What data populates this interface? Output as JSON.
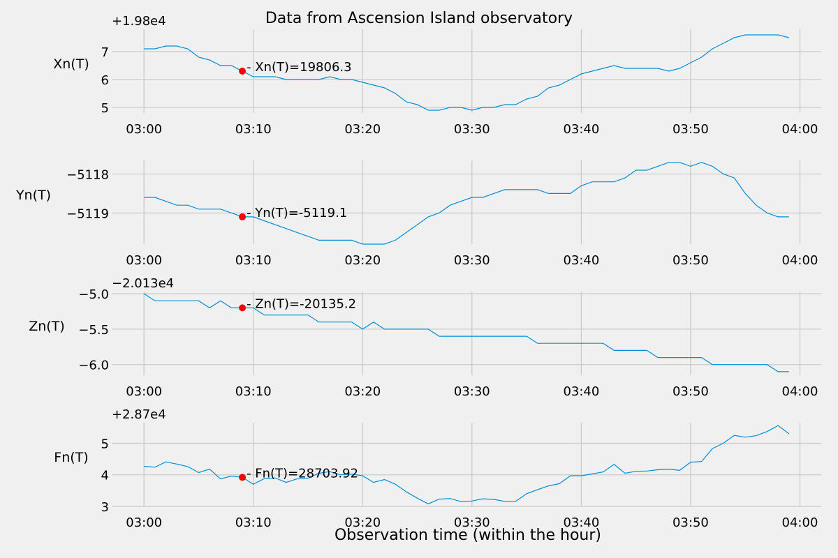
{
  "title": "Data from  Ascension Island observatory",
  "xlabel": "Observation time (within the hour)",
  "chart_data": [
    {
      "type": "line",
      "ylabel": "Xn(T)",
      "offset_text": "+1.98e4",
      "offset": 19800,
      "ylim": [
        4.8,
        7.8
      ],
      "yticks": [
        5,
        6,
        7
      ],
      "ytick_labels": [
        "5",
        "6",
        "7"
      ],
      "xticks": [
        0,
        10,
        20,
        30,
        40,
        50,
        60
      ],
      "xtick_labels": [
        "03:00",
        "03:10",
        "03:20",
        "03:30",
        "03:40",
        "03:50",
        "04:00"
      ],
      "x_minutes": [
        0,
        1,
        2,
        3,
        4,
        5,
        6,
        7,
        8,
        9,
        10,
        11,
        12,
        13,
        14,
        15,
        16,
        17,
        18,
        19,
        20,
        21,
        22,
        23,
        24,
        25,
        26,
        27,
        28,
        29,
        30,
        31,
        32,
        33,
        34,
        35,
        36,
        37,
        38,
        39,
        40,
        41,
        42,
        43,
        44,
        45,
        46,
        47,
        48,
        49,
        50,
        51,
        52,
        53,
        54,
        55,
        56,
        57,
        58,
        59
      ],
      "values": [
        7.1,
        7.1,
        7.2,
        7.2,
        7.1,
        6.8,
        6.7,
        6.5,
        6.5,
        6.3,
        6.1,
        6.1,
        6.1,
        6.0,
        6.0,
        6.0,
        6.0,
        6.1,
        6.0,
        6.0,
        5.9,
        5.8,
        5.7,
        5.5,
        5.2,
        5.1,
        4.9,
        4.9,
        5.0,
        5.0,
        4.9,
        5.0,
        5.0,
        5.1,
        5.1,
        5.3,
        5.4,
        5.7,
        5.8,
        6.0,
        6.2,
        6.3,
        6.4,
        6.5,
        6.4,
        6.4,
        6.4,
        6.4,
        6.3,
        6.4,
        6.6,
        6.8,
        7.1,
        7.3,
        7.5,
        7.6,
        7.6,
        7.6,
        7.6,
        7.5
      ],
      "marker": {
        "x_minute": 9,
        "value": 6.3,
        "label": "- Xn(T)=19806.3"
      }
    },
    {
      "type": "line",
      "ylabel": "Yn(T)",
      "offset_text": "",
      "offset": 0,
      "ylim": [
        -5119.8,
        -5117.65
      ],
      "yticks": [
        -5119,
        -5118
      ],
      "ytick_labels": [
        "−5119",
        "−5118"
      ],
      "xticks": [
        0,
        10,
        20,
        30,
        40,
        50,
        60
      ],
      "xtick_labels": [
        "03:00",
        "03:10",
        "03:20",
        "03:30",
        "03:40",
        "03:50",
        "04:00"
      ],
      "x_minutes": [
        0,
        1,
        2,
        3,
        4,
        5,
        6,
        7,
        8,
        9,
        10,
        11,
        12,
        13,
        14,
        15,
        16,
        17,
        18,
        19,
        20,
        21,
        22,
        23,
        24,
        25,
        26,
        27,
        28,
        29,
        30,
        31,
        32,
        33,
        34,
        35,
        36,
        37,
        38,
        39,
        40,
        41,
        42,
        43,
        44,
        45,
        46,
        47,
        48,
        49,
        50,
        51,
        52,
        53,
        54,
        55,
        56,
        57,
        58,
        59
      ],
      "values": [
        -5118.6,
        -5118.6,
        -5118.7,
        -5118.8,
        -5118.8,
        -5118.9,
        -5118.9,
        -5118.9,
        -5119.0,
        -5119.1,
        -5119.1,
        -5119.2,
        -5119.3,
        -5119.4,
        -5119.5,
        -5119.6,
        -5119.7,
        -5119.7,
        -5119.7,
        -5119.7,
        -5119.8,
        -5119.8,
        -5119.8,
        -5119.7,
        -5119.5,
        -5119.3,
        -5119.1,
        -5119.0,
        -5118.8,
        -5118.7,
        -5118.6,
        -5118.6,
        -5118.5,
        -5118.4,
        -5118.4,
        -5118.4,
        -5118.4,
        -5118.5,
        -5118.5,
        -5118.5,
        -5118.3,
        -5118.2,
        -5118.2,
        -5118.2,
        -5118.1,
        -5117.9,
        -5117.9,
        -5117.8,
        -5117.7,
        -5117.7,
        -5117.8,
        -5117.7,
        -5117.8,
        -5118.0,
        -5118.1,
        -5118.5,
        -5118.8,
        -5119.0,
        -5119.1,
        -5119.1
      ],
      "marker": {
        "x_minute": 9,
        "value": -5119.1,
        "label": "- Yn(T)=-5119.1"
      }
    },
    {
      "type": "line",
      "ylabel": "Zn(T)",
      "offset_text": "−2.013e4",
      "offset": -20130,
      "ylim": [
        -6.15,
        -4.97
      ],
      "yticks": [
        -6.0,
        -5.5,
        -5.0
      ],
      "ytick_labels": [
        "−6.0",
        "−5.5",
        "−5.0"
      ],
      "xticks": [
        0,
        10,
        20,
        30,
        40,
        50,
        60
      ],
      "xtick_labels": [
        "03:00",
        "03:10",
        "03:20",
        "03:30",
        "03:40",
        "03:50",
        "04:00"
      ],
      "x_minutes": [
        0,
        1,
        2,
        3,
        4,
        5,
        6,
        7,
        8,
        9,
        10,
        11,
        12,
        13,
        14,
        15,
        16,
        17,
        18,
        19,
        20,
        21,
        22,
        23,
        24,
        25,
        26,
        27,
        28,
        29,
        30,
        31,
        32,
        33,
        34,
        35,
        36,
        37,
        38,
        39,
        40,
        41,
        42,
        43,
        44,
        45,
        46,
        47,
        48,
        49,
        50,
        51,
        52,
        53,
        54,
        55,
        56,
        57,
        58,
        59
      ],
      "values": [
        -5.0,
        -5.1,
        -5.1,
        -5.1,
        -5.1,
        -5.1,
        -5.2,
        -5.1,
        -5.2,
        -5.2,
        -5.2,
        -5.3,
        -5.3,
        -5.3,
        -5.3,
        -5.3,
        -5.4,
        -5.4,
        -5.4,
        -5.4,
        -5.5,
        -5.4,
        -5.5,
        -5.5,
        -5.5,
        -5.5,
        -5.5,
        -5.6,
        -5.6,
        -5.6,
        -5.6,
        -5.6,
        -5.6,
        -5.6,
        -5.6,
        -5.6,
        -5.7,
        -5.7,
        -5.7,
        -5.7,
        -5.7,
        -5.7,
        -5.7,
        -5.8,
        -5.8,
        -5.8,
        -5.8,
        -5.9,
        -5.9,
        -5.9,
        -5.9,
        -5.9,
        -6.0,
        -6.0,
        -6.0,
        -6.0,
        -6.0,
        -6.0,
        -6.1,
        -6.1
      ],
      "marker": {
        "x_minute": 9,
        "value": -5.2,
        "label": "- Zn(T)=-20135.2"
      }
    },
    {
      "type": "line",
      "ylabel": "Fn(T)",
      "offset_text": "+2.87e4",
      "offset": 28700,
      "ylim": [
        3.0,
        5.65
      ],
      "yticks": [
        3,
        4,
        5
      ],
      "ytick_labels": [
        "3",
        "4",
        "5"
      ],
      "xticks": [
        0,
        10,
        20,
        30,
        40,
        50,
        60
      ],
      "xtick_labels": [
        "03:00",
        "03:10",
        "03:20",
        "03:30",
        "03:40",
        "03:50",
        "04:00"
      ],
      "x_minutes": [
        0,
        1,
        2,
        3,
        4,
        5,
        6,
        7,
        8,
        9,
        10,
        11,
        12,
        13,
        14,
        15,
        16,
        17,
        18,
        19,
        20,
        21,
        22,
        23,
        24,
        25,
        26,
        27,
        28,
        29,
        30,
        31,
        32,
        33,
        34,
        35,
        36,
        37,
        38,
        39,
        40,
        41,
        42,
        43,
        44,
        45,
        46,
        47,
        48,
        49,
        50,
        51,
        52,
        53,
        54,
        55,
        56,
        57,
        58,
        59
      ],
      "values": [
        4.27,
        4.24,
        4.41,
        4.34,
        4.26,
        4.07,
        4.18,
        3.87,
        3.96,
        3.92,
        3.7,
        3.88,
        3.9,
        3.76,
        3.87,
        3.89,
        4.05,
        4.1,
        4.0,
        4.02,
        3.97,
        3.76,
        3.85,
        3.7,
        3.46,
        3.26,
        3.08,
        3.23,
        3.25,
        3.15,
        3.17,
        3.24,
        3.22,
        3.16,
        3.16,
        3.4,
        3.53,
        3.65,
        3.72,
        3.97,
        3.97,
        4.03,
        4.09,
        4.33,
        4.05,
        4.11,
        4.12,
        4.16,
        4.18,
        4.14,
        4.4,
        4.42,
        4.83,
        5.0,
        5.25,
        5.19,
        5.24,
        5.37,
        5.56,
        5.3
      ],
      "marker": {
        "x_minute": 9,
        "value": 3.92,
        "label": "- Fn(T)=28703.92"
      }
    }
  ]
}
